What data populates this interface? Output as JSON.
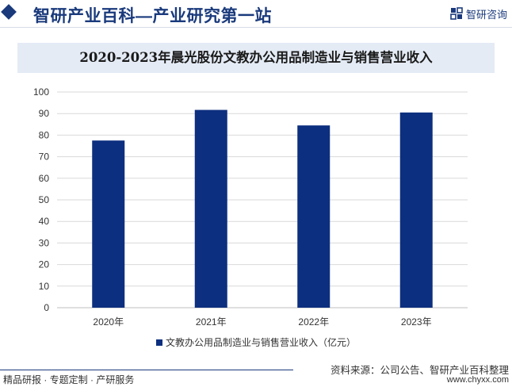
{
  "header": {
    "title": "智研产业百科—产业研究第一站",
    "logo_text": "智研咨询",
    "logo_icon": "chyxx-logo-icon"
  },
  "chart_data": {
    "type": "bar",
    "title": "2020-2023年晨光股份文教办公用品制造业与销售营业收入",
    "categories": [
      "2020年",
      "2021年",
      "2022年",
      "2023年"
    ],
    "series": [
      {
        "name": "文教办公用品制造业与销售营业收入（亿元）",
        "values": [
          77.5,
          91.7,
          84.5,
          90.5
        ]
      }
    ],
    "ylim": [
      0,
      100
    ],
    "yticks": [
      0,
      10,
      20,
      30,
      40,
      50,
      60,
      70,
      80,
      90,
      100
    ],
    "grid": true,
    "legend_position": "bottom",
    "colors": {
      "bar": "#0d2f7f",
      "grid": "#d9d9d9",
      "axis": "#bfbfbf"
    }
  },
  "footer": {
    "left": "精品研报 · 专题定制 · 产研服务",
    "source": "资料来源：公司公告、智研产业百科整理",
    "url": "www.chyxx.com"
  }
}
